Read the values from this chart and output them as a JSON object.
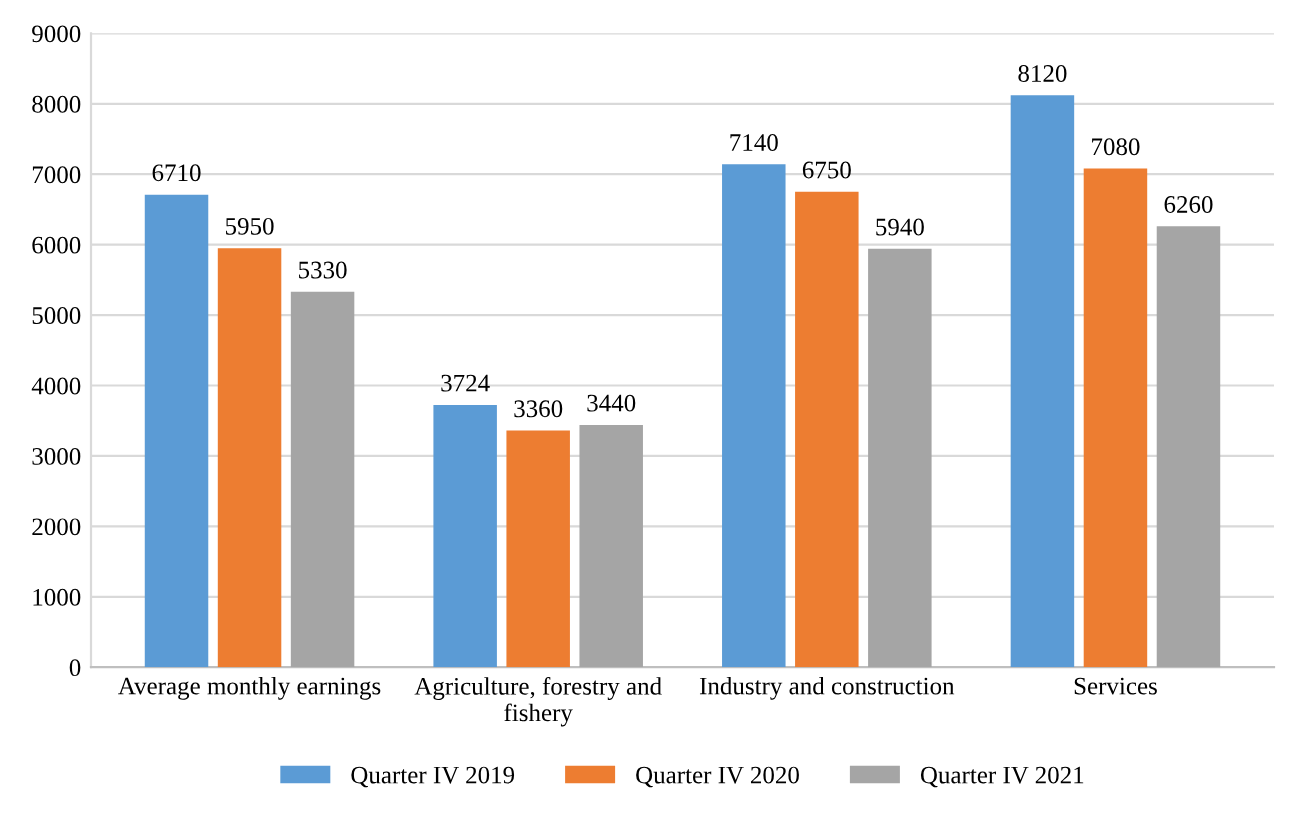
{
  "chart_data": {
    "type": "bar",
    "categories": [
      "Average monthly earnings",
      "Agriculture, forestry and\nfishery",
      "Industry and construction",
      "Services"
    ],
    "series": [
      {
        "name": "Quarter IV 2019",
        "color": "#5b9bd5",
        "values": [
          6710,
          3724,
          7140,
          8120
        ]
      },
      {
        "name": "Quarter IV 2020",
        "color": "#ed7d31",
        "values": [
          5950,
          3360,
          6750,
          7080
        ]
      },
      {
        "name": "Quarter IV 2021",
        "color": "#a5a5a5",
        "values": [
          5330,
          3440,
          5940,
          6260
        ]
      }
    ],
    "ylim": [
      0,
      9000
    ],
    "yticks": [
      0,
      1000,
      2000,
      3000,
      4000,
      5000,
      6000,
      7000,
      8000,
      9000
    ],
    "grid": "y",
    "legend": "bottom",
    "data_labels": true
  }
}
